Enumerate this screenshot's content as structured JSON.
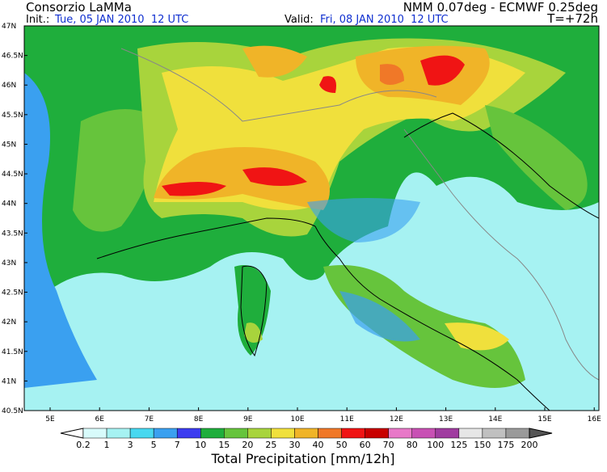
{
  "header": {
    "title": "Consorzio LaMMa",
    "model": "NMM 0.07deg - ECMWF 0.25deg",
    "init_label": "Init.:",
    "init": "Tue, 05 JAN 2010  12 UTC",
    "valid_label": "Valid:",
    "valid": "Fri, 08 JAN 2010  12 UTC",
    "lead": "T=+72h"
  },
  "map": {
    "lat_labels": [
      "47N",
      "46.5N",
      "46N",
      "45.5N",
      "45N",
      "44.5N",
      "44N",
      "43.5N",
      "43N",
      "42.5N",
      "42N",
      "41.5N",
      "41N",
      "40.5N"
    ],
    "lon_labels": [
      "5E",
      "6E",
      "7E",
      "8E",
      "9E",
      "10E",
      "11E",
      "12E",
      "13E",
      "14E",
      "15E",
      "16E"
    ]
  },
  "colorbar": {
    "levels": [
      0.2,
      1,
      3,
      5,
      7,
      10,
      15,
      20,
      25,
      30,
      40,
      50,
      60,
      70,
      80,
      100,
      125,
      150,
      175,
      200
    ],
    "colors": [
      "#ffffff",
      "#d8fbfb",
      "#a6f2f2",
      "#48d8f0",
      "#3aa0f0",
      "#3c3cf0",
      "#1fae3c",
      "#66c43c",
      "#a8d43c",
      "#f0e03c",
      "#f0b428",
      "#f07828",
      "#f01414",
      "#c80000",
      "#e878c8",
      "#c850b4",
      "#a03ca0",
      "#e6e6e6",
      "#c0c0c0",
      "#9a9a9a",
      "#555555"
    ],
    "label": "Total Precipitation [mm/12h]"
  }
}
